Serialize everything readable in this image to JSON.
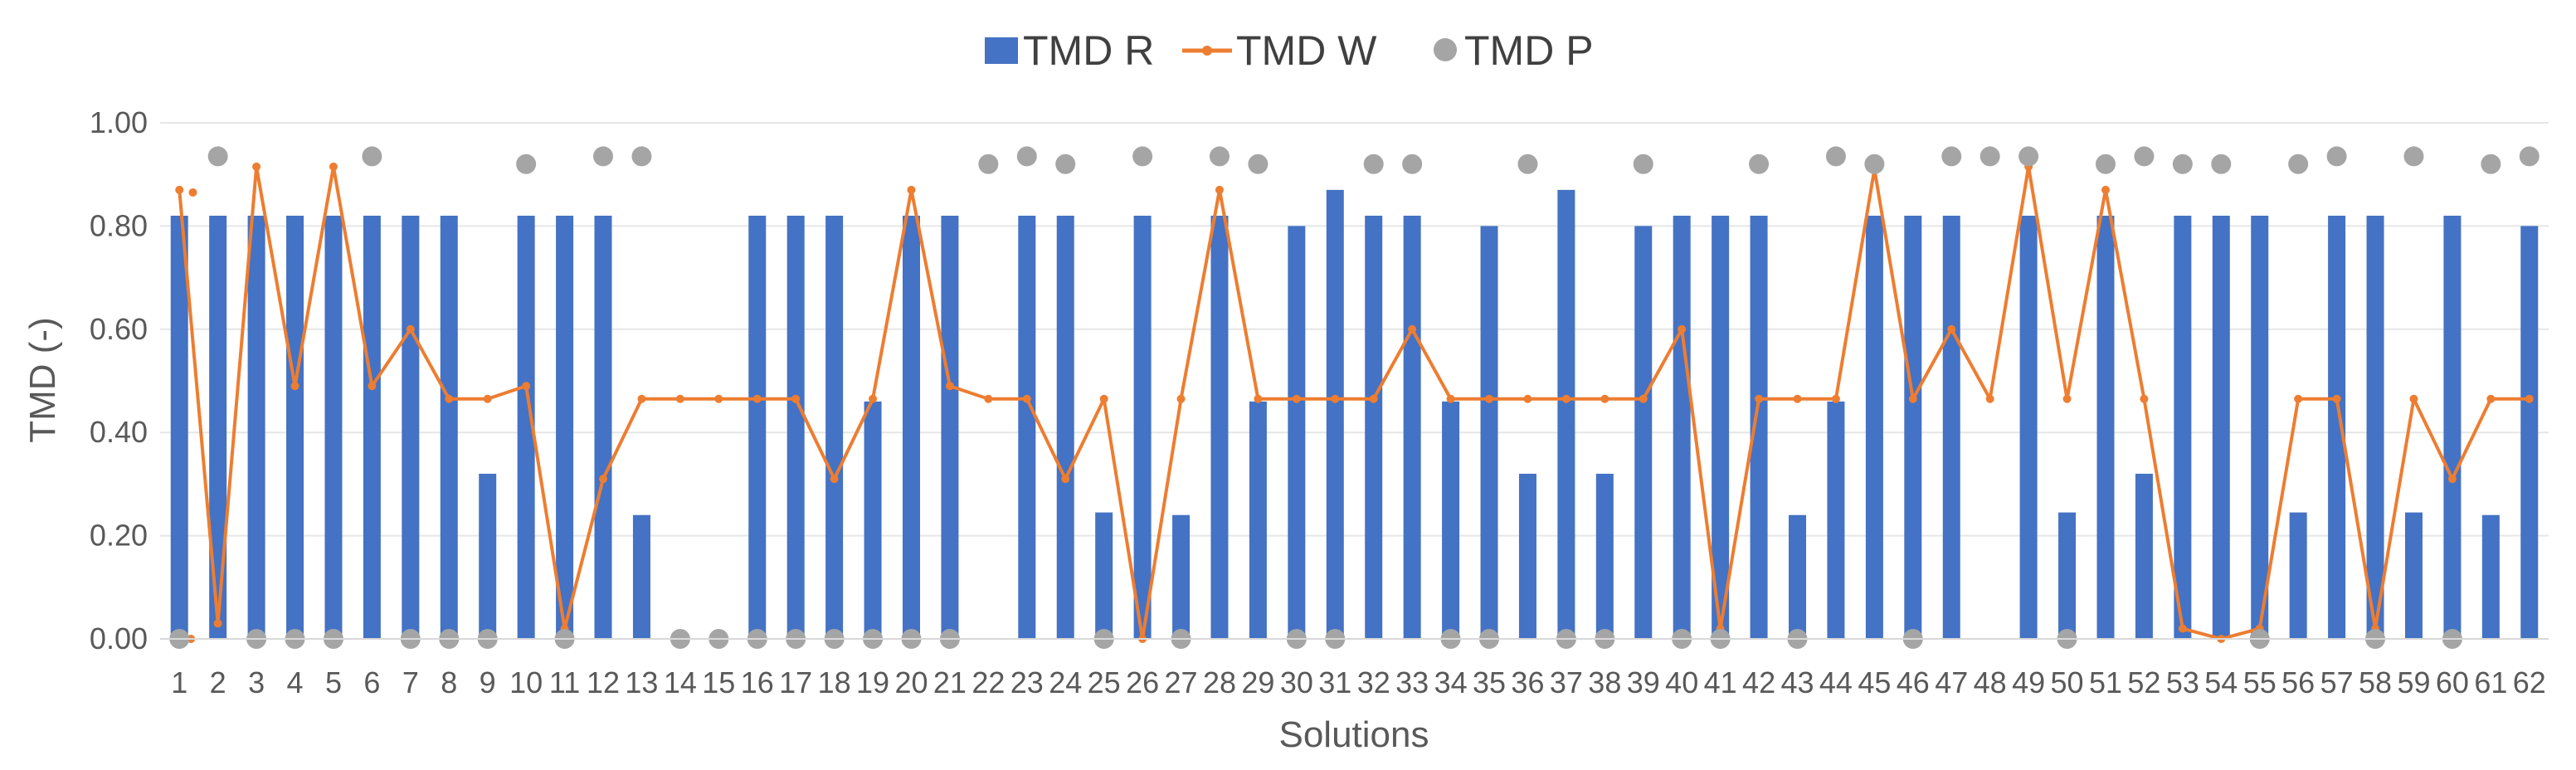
{
  "chart_data": {
    "type": "bar",
    "xlabel": "Solutions",
    "ylabel": "TMD (-)",
    "ylim": [
      0,
      1
    ],
    "yticks": [
      "0.00",
      "0.20",
      "0.40",
      "0.60",
      "0.80",
      "1.00"
    ],
    "grid": true,
    "legend_position": "top-center",
    "categories": [
      "1",
      "2",
      "3",
      "4",
      "5",
      "6",
      "7",
      "8",
      "9",
      "10",
      "11",
      "12",
      "13",
      "14",
      "15",
      "16",
      "17",
      "18",
      "19",
      "20",
      "21",
      "22",
      "23",
      "24",
      "25",
      "26",
      "27",
      "28",
      "29",
      "30",
      "31",
      "32",
      "33",
      "34",
      "35",
      "36",
      "37",
      "38",
      "39",
      "40",
      "41",
      "42",
      "43",
      "44",
      "45",
      "46",
      "47",
      "48",
      "49",
      "50",
      "51",
      "52",
      "53",
      "54",
      "55",
      "56",
      "57",
      "58",
      "59",
      "60",
      "61",
      "62"
    ],
    "series": [
      {
        "name": "TMD R",
        "kind": "bar",
        "color": "#4472C4",
        "values": [
          0.82,
          0.82,
          0.82,
          0.82,
          0.82,
          0.82,
          0.82,
          0.82,
          0.32,
          0.82,
          0.82,
          0.82,
          0.24,
          0,
          0,
          0.82,
          0.82,
          0.82,
          0.46,
          0.82,
          0.82,
          0,
          0.82,
          0.82,
          0.245,
          0.82,
          0.24,
          0.82,
          0.46,
          0.8,
          0.87,
          0.82,
          0.82,
          0.46,
          0.8,
          0.32,
          0.87,
          0.32,
          0.8,
          0.82,
          0.82,
          0.82,
          0.24,
          0.46,
          0.82,
          0.82,
          0.82,
          0,
          0.82,
          0.245,
          0.82,
          0.32,
          0.82,
          0.82,
          0.82,
          0.245,
          0.82,
          0.82,
          0.245,
          0.82,
          0.24,
          0.8
        ]
      },
      {
        "name": "TMD W",
        "kind": "line",
        "color": "#ED7D31",
        "values": [
          0.87,
          0.03,
          0.915,
          0.49,
          0.915,
          0.49,
          0.6,
          0.465,
          0.465,
          0.49,
          0.02,
          0.31,
          0.465,
          0.465,
          0.465,
          0.465,
          0.465,
          0.31,
          0.465,
          0.87,
          0.49,
          0.465,
          0.465,
          0.31,
          0.465,
          0.0,
          0.465,
          0.87,
          0.465,
          0.465,
          0.465,
          0.465,
          0.6,
          0.465,
          0.465,
          0.465,
          0.465,
          0.465,
          0.465,
          0.6,
          0.02,
          0.465,
          0.465,
          0.465,
          0.91,
          0.465,
          0.6,
          0.465,
          0.915,
          0.465,
          0.87,
          0.465,
          0.02,
          0.0,
          0.02,
          0.465,
          0.465,
          0.02,
          0.465,
          0.31,
          0.465,
          0.465
        ]
      },
      {
        "name": "TMD P",
        "kind": "scatter",
        "color": "#A5A5A5",
        "values": [
          0,
          0.935,
          0,
          0,
          0,
          0.935,
          0,
          0,
          0,
          0.92,
          0,
          0.935,
          0.935,
          0,
          0,
          0,
          0,
          0,
          0,
          0,
          0,
          0.92,
          0.935,
          0.92,
          0,
          0.935,
          0,
          0.935,
          0.92,
          0,
          0,
          0.92,
          0.92,
          0,
          0,
          0.92,
          0,
          0,
          0.92,
          0,
          0,
          0.92,
          0,
          0.935,
          0.92,
          0,
          0.935,
          0.935,
          0.935,
          0,
          0.92,
          0.935,
          0.92,
          0.92,
          0,
          0.92,
          0.935,
          0,
          0.935,
          0,
          0.92,
          0.935
        ]
      }
    ],
    "stray_markers": [
      {
        "series": "TMD W",
        "category_position": 1.35,
        "value": 0.865
      },
      {
        "series": "TMD W",
        "category_position": 1.3,
        "value": 0.0
      }
    ]
  }
}
